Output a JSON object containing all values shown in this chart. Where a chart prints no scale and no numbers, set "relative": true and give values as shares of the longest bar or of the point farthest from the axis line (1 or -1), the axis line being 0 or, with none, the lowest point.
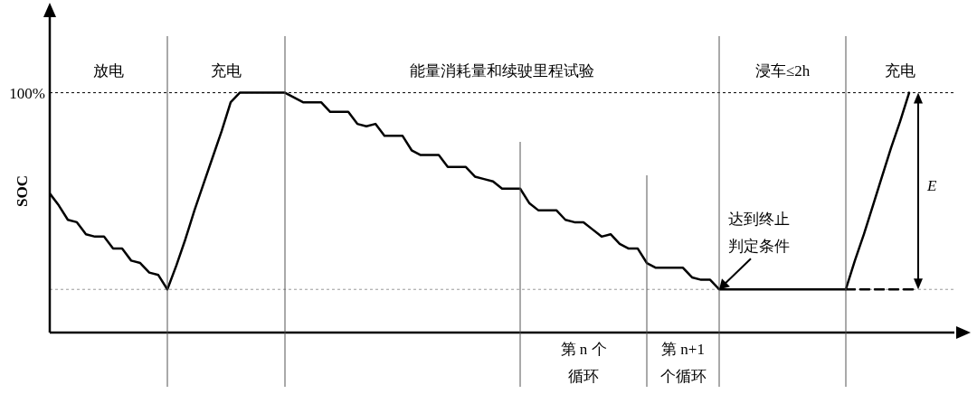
{
  "chart_data": {
    "type": "line",
    "relative": true,
    "grid": "x",
    "ylabel": "SOC",
    "marker": "none",
    "categories": [
      null,
      null,
      null,
      null,
      null,
      null,
      null,
      null,
      null,
      null,
      null,
      null,
      null,
      null,
      null,
      null,
      null,
      null,
      null,
      null,
      null,
      null,
      null,
      null,
      null,
      null,
      null,
      null,
      null,
      null,
      null,
      null,
      null,
      null,
      null,
      null,
      null,
      null,
      null,
      null,
      null,
      null,
      null,
      null,
      null,
      null,
      null,
      null,
      null,
      null,
      null,
      null,
      null,
      null,
      null,
      null,
      null,
      null,
      null,
      null,
      null,
      null,
      null,
      null,
      null,
      null,
      null,
      null,
      null,
      null,
      null,
      null,
      null,
      null,
      null,
      null,
      null,
      null,
      null,
      null,
      null,
      null,
      null,
      null,
      null,
      null,
      null,
      null,
      null,
      null,
      null,
      null,
      null,
      null,
      null,
      null,
      null,
      null,
      null,
      null,
      null
    ],
    "series": [
      {
        "color": "#000000",
        "line_style": "solid",
        "values": [
          0.58,
          0.53,
          0.47,
          0.46,
          0.41,
          0.4,
          0.4,
          0.35,
          0.35,
          0.3,
          0.29,
          0.25,
          0.24,
          0.18,
          0.28,
          0.39,
          0.51,
          0.62,
          0.73,
          0.84,
          0.96,
          1,
          1,
          1,
          1,
          1,
          1,
          0.98,
          0.96,
          0.96,
          0.96,
          0.92,
          0.92,
          0.92,
          0.87,
          0.86,
          0.87,
          0.82,
          0.82,
          0.82,
          0.76,
          0.74,
          0.74,
          0.74,
          0.69,
          0.69,
          0.69,
          0.65,
          0.64,
          0.63,
          0.6,
          0.6,
          0.6,
          0.54,
          0.51,
          0.51,
          0.51,
          0.47,
          0.46,
          0.46,
          0.43,
          0.4,
          0.41,
          0.37,
          0.35,
          0.35,
          0.29,
          0.27,
          0.27,
          0.27,
          0.27,
          0.23,
          0.22,
          0.22,
          0.18,
          0.18,
          0.18,
          0.18,
          0.18,
          0.18,
          0.18,
          0.18,
          0.18,
          0.18,
          0.18,
          0.18,
          0.18,
          0.18,
          0.18,
          0.3,
          0.41,
          0.53,
          0.65,
          0.77,
          0.88,
          1,
          null,
          null,
          null,
          null,
          null
        ]
      },
      {
        "color": "#000000",
        "line_style": "dashed",
        "values": [
          null,
          null,
          null,
          null,
          null,
          null,
          null,
          null,
          null,
          null,
          null,
          null,
          null,
          null,
          null,
          null,
          null,
          null,
          null,
          null,
          null,
          null,
          null,
          null,
          null,
          null,
          null,
          null,
          null,
          null,
          null,
          null,
          null,
          null,
          null,
          null,
          null,
          null,
          null,
          null,
          null,
          null,
          null,
          null,
          null,
          null,
          null,
          null,
          null,
          null,
          null,
          null,
          null,
          null,
          null,
          null,
          null,
          null,
          null,
          null,
          null,
          null,
          null,
          null,
          null,
          null,
          null,
          null,
          null,
          null,
          null,
          null,
          null,
          null,
          null,
          null,
          null,
          null,
          null,
          null,
          null,
          null,
          null,
          null,
          null,
          null,
          null,
          null,
          0.18,
          0.18,
          0.18,
          0.18,
          0.18,
          0.18,
          0.18,
          0.18,
          0.18,
          null,
          null,
          null,
          null
        ]
      }
    ],
    "ref_lines": [
      {
        "axis": "y",
        "value": 1,
        "label": "100%",
        "color": "#000000",
        "line_style": "dotted"
      },
      {
        "axis": "y",
        "value": 0.18,
        "color": "#999999",
        "line_style": "dotted"
      }
    ],
    "annotations": [
      "放电",
      "充电",
      "能量消耗量和续驶里程试验",
      "浸车≤2h",
      "充电",
      "第 n 个循环",
      "第 n+1 个循环",
      {
        "text": "达到终止判定条件",
        "y": 0.18
      },
      "E"
    ]
  }
}
